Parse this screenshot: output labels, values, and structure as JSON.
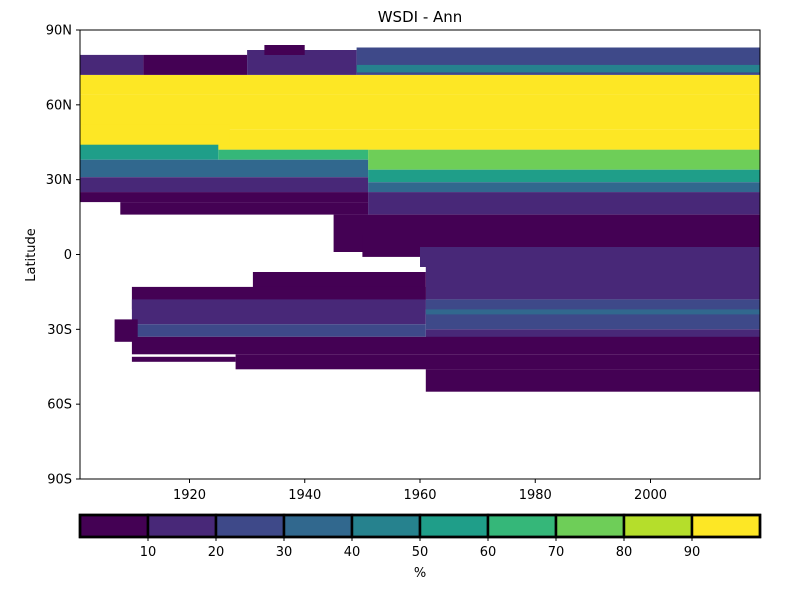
{
  "chart_data": {
    "type": "heatmap",
    "title": "WSDI - Ann",
    "xlabel": "",
    "ylabel": "Latitude",
    "xlim": [
      1901,
      2019
    ],
    "ylim": [
      -90,
      90
    ],
    "x_ticks": [
      {
        "value": 1920,
        "label": "1920"
      },
      {
        "value": 1940,
        "label": "1940"
      },
      {
        "value": 1960,
        "label": "1960"
      },
      {
        "value": 1980,
        "label": "1980"
      },
      {
        "value": 2000,
        "label": "2000"
      }
    ],
    "y_ticks": [
      {
        "value": 90,
        "label": "90N"
      },
      {
        "value": 60,
        "label": "60N"
      },
      {
        "value": 30,
        "label": "30N"
      },
      {
        "value": 0,
        "label": "0"
      },
      {
        "value": -30,
        "label": "30S"
      },
      {
        "value": -60,
        "label": "60S"
      },
      {
        "value": -90,
        "label": "90S"
      }
    ],
    "colorbar": {
      "label": "%",
      "range": [
        0,
        100
      ],
      "bins": [
        {
          "from": 0,
          "to": 10,
          "color": "#440154"
        },
        {
          "from": 10,
          "to": 20,
          "color": "#482878"
        },
        {
          "from": 20,
          "to": 30,
          "color": "#3e4989"
        },
        {
          "from": 30,
          "to": 40,
          "color": "#31688e"
        },
        {
          "from": 40,
          "to": 50,
          "color": "#26828e"
        },
        {
          "from": 50,
          "to": 60,
          "color": "#1f9e89"
        },
        {
          "from": 60,
          "to": 70,
          "color": "#35b779"
        },
        {
          "from": 70,
          "to": 80,
          "color": "#6ece58"
        },
        {
          "from": 80,
          "to": 90,
          "color": "#b5de2b"
        },
        {
          "from": 90,
          "to": 100,
          "color": "#fde725"
        }
      ],
      "tick_labels": [
        "10",
        "20",
        "30",
        "40",
        "50",
        "60",
        "70",
        "80",
        "90"
      ]
    },
    "cells": [
      {
        "x0": 1901,
        "x1": 2019,
        "lat0": 64,
        "lat1": 72,
        "value": 95
      },
      {
        "x0": 1901,
        "x1": 2019,
        "lat0": 50,
        "lat1": 64,
        "value": 95
      },
      {
        "x0": 1901,
        "x1": 2019,
        "lat0": 42,
        "lat1": 50,
        "value": 95
      },
      {
        "x0": 1901,
        "x1": 1927,
        "lat0": 44,
        "lat1": 52,
        "value": 95
      },
      {
        "x0": 1901,
        "x1": 1912,
        "lat0": 72,
        "lat1": 80,
        "value": 15
      },
      {
        "x0": 1912,
        "x1": 1930,
        "lat0": 72,
        "lat1": 80,
        "value": 5
      },
      {
        "x0": 1930,
        "x1": 1949,
        "lat0": 72,
        "lat1": 82,
        "value": 15
      },
      {
        "x0": 1949,
        "x1": 2019,
        "lat0": 72,
        "lat1": 83,
        "value": 25
      },
      {
        "x0": 1949,
        "x1": 2019,
        "lat0": 73,
        "lat1": 76,
        "value": 45
      },
      {
        "x0": 1933,
        "x1": 1940,
        "lat0": 80,
        "lat1": 84,
        "value": 5
      },
      {
        "x0": 1901,
        "x1": 1925,
        "lat0": 38,
        "lat1": 44,
        "value": 55
      },
      {
        "x0": 1925,
        "x1": 1951,
        "lat0": 38,
        "lat1": 42,
        "value": 65
      },
      {
        "x0": 1951,
        "x1": 2019,
        "lat0": 34,
        "lat1": 42,
        "value": 75
      },
      {
        "x0": 1951,
        "x1": 2019,
        "lat0": 29,
        "lat1": 34,
        "value": 55
      },
      {
        "x0": 1901,
        "x1": 1951,
        "lat0": 31,
        "lat1": 38,
        "value": 35
      },
      {
        "x0": 1951,
        "x1": 2019,
        "lat0": 25,
        "lat1": 29,
        "value": 35
      },
      {
        "x0": 1901,
        "x1": 1951,
        "lat0": 25,
        "lat1": 31,
        "value": 15
      },
      {
        "x0": 1951,
        "x1": 2019,
        "lat0": 16,
        "lat1": 25,
        "value": 15
      },
      {
        "x0": 1901,
        "x1": 1951,
        "lat0": 21,
        "lat1": 25,
        "value": 5
      },
      {
        "x0": 1908,
        "x1": 1951,
        "lat0": 16,
        "lat1": 21,
        "value": 5
      },
      {
        "x0": 1945,
        "x1": 2019,
        "lat0": 1,
        "lat1": 16,
        "value": 5
      },
      {
        "x0": 1950,
        "x1": 2019,
        "lat0": -1,
        "lat1": 8,
        "value": 5
      },
      {
        "x0": 1960,
        "x1": 2019,
        "lat0": -5,
        "lat1": 3,
        "value": 15
      },
      {
        "x0": 1961,
        "x1": 2019,
        "lat0": -18,
        "lat1": -5,
        "value": 15
      },
      {
        "x0": 1931,
        "x1": 1961,
        "lat0": -18,
        "lat1": -7,
        "value": 5
      },
      {
        "x0": 1910,
        "x1": 1961,
        "lat0": -22,
        "lat1": -13,
        "value": 5
      },
      {
        "x0": 1910,
        "x1": 1961,
        "lat0": -28,
        "lat1": -18,
        "value": 15
      },
      {
        "x0": 1961,
        "x1": 2019,
        "lat0": -30,
        "lat1": -18,
        "value": 25
      },
      {
        "x0": 1961,
        "x1": 2019,
        "lat0": -24,
        "lat1": -22,
        "value": 35
      },
      {
        "x0": 1910,
        "x1": 1961,
        "lat0": -33,
        "lat1": -28,
        "value": 25
      },
      {
        "x0": 1961,
        "x1": 2019,
        "lat0": -34,
        "lat1": -30,
        "value": 15
      },
      {
        "x0": 1907,
        "x1": 1911,
        "lat0": -35,
        "lat1": -26,
        "value": 5
      },
      {
        "x0": 1910,
        "x1": 2019,
        "lat0": -40,
        "lat1": -33,
        "value": 5
      },
      {
        "x0": 1928,
        "x1": 2019,
        "lat0": -46,
        "lat1": -40,
        "value": 5
      },
      {
        "x0": 1910,
        "x1": 1928,
        "lat0": -43,
        "lat1": -41,
        "value": 5
      },
      {
        "x0": 1961,
        "x1": 2019,
        "lat0": -55,
        "lat1": -46,
        "value": 5
      }
    ]
  }
}
